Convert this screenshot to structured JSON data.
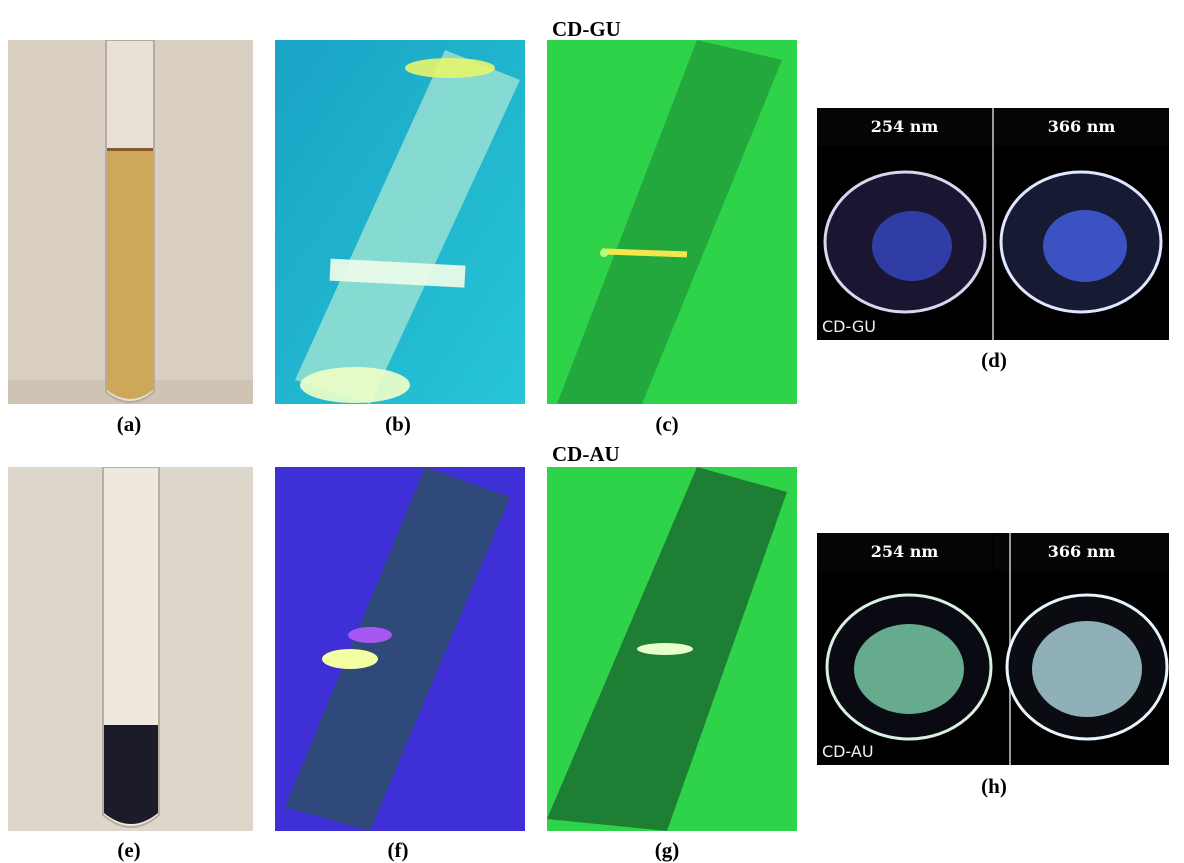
{
  "titles": {
    "top": "CD-GU",
    "bottom": "CD-AU"
  },
  "labels": {
    "a": "(a)",
    "b": "(b)",
    "c": "(c)",
    "d": "(d)",
    "e": "(e)",
    "f": "(f)",
    "g": "(g)",
    "h": "(h)"
  },
  "panel_d": {
    "left_header": "254 nm",
    "right_header": "366 nm",
    "tag": "CD-GU"
  },
  "panel_h": {
    "left_header": "254 nm",
    "right_header": "366 nm",
    "tag": "CD-AU"
  },
  "colors": {
    "gu_liquid": "#c9a24a",
    "au_liquid": "#1b1b2a",
    "uv_cyan": "#27c6d6",
    "uv_green": "#2fd34a",
    "uv_violet": "#3f2fd6"
  }
}
